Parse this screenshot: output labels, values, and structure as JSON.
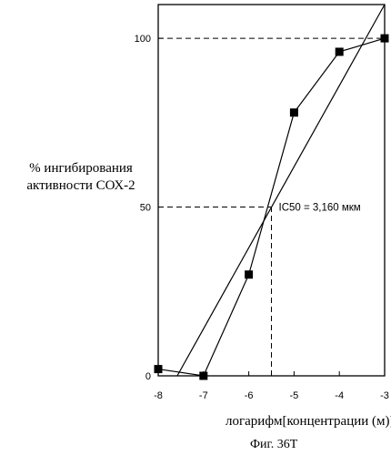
{
  "chart_data": {
    "type": "line",
    "xlabel": "логарифм[концентрации (м)]",
    "ylabel_lines": [
      "% ингибирования",
      "активности СОХ-2"
    ],
    "caption": "Фиг. 36Т",
    "xlim": [
      -8,
      -3
    ],
    "ylim": [
      0,
      110
    ],
    "x_ticks": [
      -8,
      -7,
      -6,
      -5,
      -4,
      -3
    ],
    "x_tick_labels": [
      "-8",
      "-7",
      "-6",
      "-5",
      "-4",
      "-3"
    ],
    "y_ticks": [
      0,
      50,
      100
    ],
    "y_tick_labels": [
      "0",
      "50",
      "100"
    ],
    "grid": false,
    "series": [
      {
        "x": [
          -8,
          -7,
          -6,
          -5,
          -4,
          -3
        ],
        "y": [
          2,
          0,
          30,
          78,
          96,
          100
        ],
        "marker": "square"
      }
    ],
    "fit_line": {
      "x": [
        -7.58,
        -3
      ],
      "y": [
        0,
        110
      ]
    },
    "reference_lines": [
      {
        "y": 100,
        "x_from": -8,
        "x_to": -3
      },
      {
        "y": 50,
        "x_from": -8,
        "x_to": -5.5
      },
      {
        "x": -5.5,
        "y_from": 0,
        "y_to": 50
      }
    ],
    "annotation": {
      "text": "IC50 = 3,160 мкм",
      "x": -5.5,
      "y": 50
    },
    "colors": {
      "line": "#000000",
      "marker": "#000000"
    }
  }
}
